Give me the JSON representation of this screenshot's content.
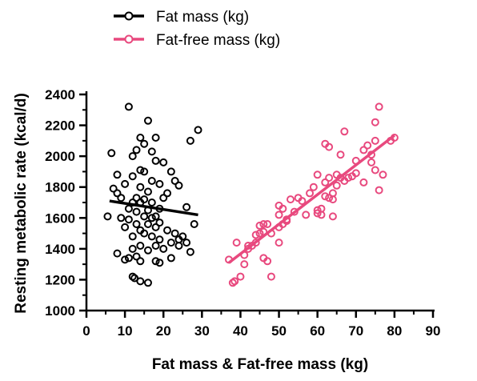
{
  "chart_data": {
    "type": "scatter",
    "xlabel": "Fat mass & Fat-free mass (kg)",
    "ylabel": "Resting metabolic rate (kcal/d)",
    "xlim": [
      0,
      90
    ],
    "ylim": [
      1000,
      2400
    ],
    "xticks": [
      0,
      10,
      20,
      30,
      40,
      50,
      60,
      70,
      80,
      90
    ],
    "yticks": [
      1000,
      1200,
      1400,
      1600,
      1800,
      2000,
      2200,
      2400
    ],
    "x_minor_step": 5,
    "y_minor_step": 100,
    "grid": false,
    "legend_position": "top-left (above plot)",
    "series": [
      {
        "name": "Fat mass (kg)",
        "color": "#000000",
        "marker": "open-circle",
        "fit_line": [
          [
            6,
            1710
          ],
          [
            29,
            1620
          ]
        ],
        "points": [
          [
            11,
            2320
          ],
          [
            16,
            2230
          ],
          [
            29,
            2170
          ],
          [
            27,
            2100
          ],
          [
            14,
            2120
          ],
          [
            18,
            2120
          ],
          [
            15,
            2080
          ],
          [
            6.5,
            2020
          ],
          [
            13,
            2040
          ],
          [
            17,
            2030
          ],
          [
            12,
            2000
          ],
          [
            18,
            1970
          ],
          [
            20,
            1960
          ],
          [
            22,
            1900
          ],
          [
            8,
            1880
          ],
          [
            14,
            1910
          ],
          [
            15,
            1900
          ],
          [
            12,
            1870
          ],
          [
            23,
            1840
          ],
          [
            17,
            1840
          ],
          [
            7,
            1790
          ],
          [
            10,
            1820
          ],
          [
            14,
            1800
          ],
          [
            19,
            1820
          ],
          [
            24,
            1810
          ],
          [
            8,
            1760
          ],
          [
            9,
            1730
          ],
          [
            13,
            1730
          ],
          [
            15,
            1720
          ],
          [
            16,
            1770
          ],
          [
            21,
            1760
          ],
          [
            20,
            1730
          ],
          [
            12,
            1700
          ],
          [
            14,
            1700
          ],
          [
            17,
            1700
          ],
          [
            11,
            1660
          ],
          [
            13,
            1640
          ],
          [
            16,
            1650
          ],
          [
            19,
            1660
          ],
          [
            26,
            1670
          ],
          [
            5.5,
            1610
          ],
          [
            9,
            1600
          ],
          [
            11,
            1590
          ],
          [
            15,
            1610
          ],
          [
            18,
            1610
          ],
          [
            13,
            1560
          ],
          [
            16,
            1560
          ],
          [
            17,
            1600
          ],
          [
            19,
            1570
          ],
          [
            10,
            1540
          ],
          [
            14,
            1520
          ],
          [
            12,
            1480
          ],
          [
            15,
            1500
          ],
          [
            18,
            1540
          ],
          [
            21,
            1520
          ],
          [
            23,
            1500
          ],
          [
            25,
            1480
          ],
          [
            28,
            1560
          ],
          [
            17,
            1480
          ],
          [
            19,
            1460
          ],
          [
            22,
            1440
          ],
          [
            24,
            1420
          ],
          [
            26,
            1440
          ],
          [
            18,
            1420
          ],
          [
            14,
            1420
          ],
          [
            12,
            1400
          ],
          [
            16,
            1390
          ],
          [
            20,
            1400
          ],
          [
            27,
            1380
          ],
          [
            8,
            1370
          ],
          [
            11,
            1340
          ],
          [
            13,
            1350
          ],
          [
            18,
            1320
          ],
          [
            22,
            1340
          ],
          [
            19,
            1310
          ],
          [
            14,
            1320
          ],
          [
            10,
            1330
          ],
          [
            12,
            1220
          ],
          [
            12.5,
            1210
          ],
          [
            14,
            1190
          ],
          [
            16,
            1180
          ],
          [
            24,
            1460
          ]
        ]
      },
      {
        "name": "Fat-free mass (kg)",
        "color": "#e8497e",
        "marker": "open-circle",
        "fit_line": [
          [
            37,
            1310
          ],
          [
            80,
            2135
          ]
        ],
        "points": [
          [
            37,
            1330
          ],
          [
            38,
            1180
          ],
          [
            38.5,
            1190
          ],
          [
            39,
            1440
          ],
          [
            40,
            1220
          ],
          [
            41,
            1360
          ],
          [
            41,
            1300
          ],
          [
            42,
            1420
          ],
          [
            42,
            1400
          ],
          [
            43,
            1420
          ],
          [
            44,
            1490
          ],
          [
            44,
            1440
          ],
          [
            45,
            1500
          ],
          [
            45,
            1550
          ],
          [
            46,
            1560
          ],
          [
            46,
            1510
          ],
          [
            46,
            1340
          ],
          [
            47,
            1320
          ],
          [
            47,
            1560
          ],
          [
            48,
            1220
          ],
          [
            48,
            1500
          ],
          [
            50,
            1540
          ],
          [
            50,
            1440
          ],
          [
            50,
            1620
          ],
          [
            50,
            1680
          ],
          [
            51,
            1560
          ],
          [
            51,
            1660
          ],
          [
            52,
            1590
          ],
          [
            52,
            1580
          ],
          [
            53,
            1720
          ],
          [
            54,
            1640
          ],
          [
            55,
            1730
          ],
          [
            56,
            1710
          ],
          [
            57,
            1620
          ],
          [
            58,
            1760
          ],
          [
            59,
            1800
          ],
          [
            60,
            1650
          ],
          [
            60,
            1630
          ],
          [
            60,
            1880
          ],
          [
            61,
            1660
          ],
          [
            61,
            1620
          ],
          [
            62,
            2080
          ],
          [
            62,
            1830
          ],
          [
            62,
            1740
          ],
          [
            63,
            1730
          ],
          [
            63,
            2060
          ],
          [
            63,
            1860
          ],
          [
            64,
            1720
          ],
          [
            64,
            1760
          ],
          [
            64,
            1610
          ],
          [
            65,
            1880
          ],
          [
            65,
            1810
          ],
          [
            66,
            1860
          ],
          [
            66,
            2010
          ],
          [
            67,
            1840
          ],
          [
            67,
            2160
          ],
          [
            68,
            1860
          ],
          [
            69,
            1870
          ],
          [
            70,
            1890
          ],
          [
            70,
            1970
          ],
          [
            72,
            2040
          ],
          [
            72,
            1830
          ],
          [
            73,
            2070
          ],
          [
            74,
            1960
          ],
          [
            75,
            2220
          ],
          [
            75,
            2100
          ],
          [
            75,
            1910
          ],
          [
            76,
            2320
          ],
          [
            76,
            1780
          ],
          [
            77,
            1880
          ],
          [
            79,
            2100
          ],
          [
            80,
            2120
          ],
          [
            74,
            2010
          ]
        ]
      }
    ]
  }
}
